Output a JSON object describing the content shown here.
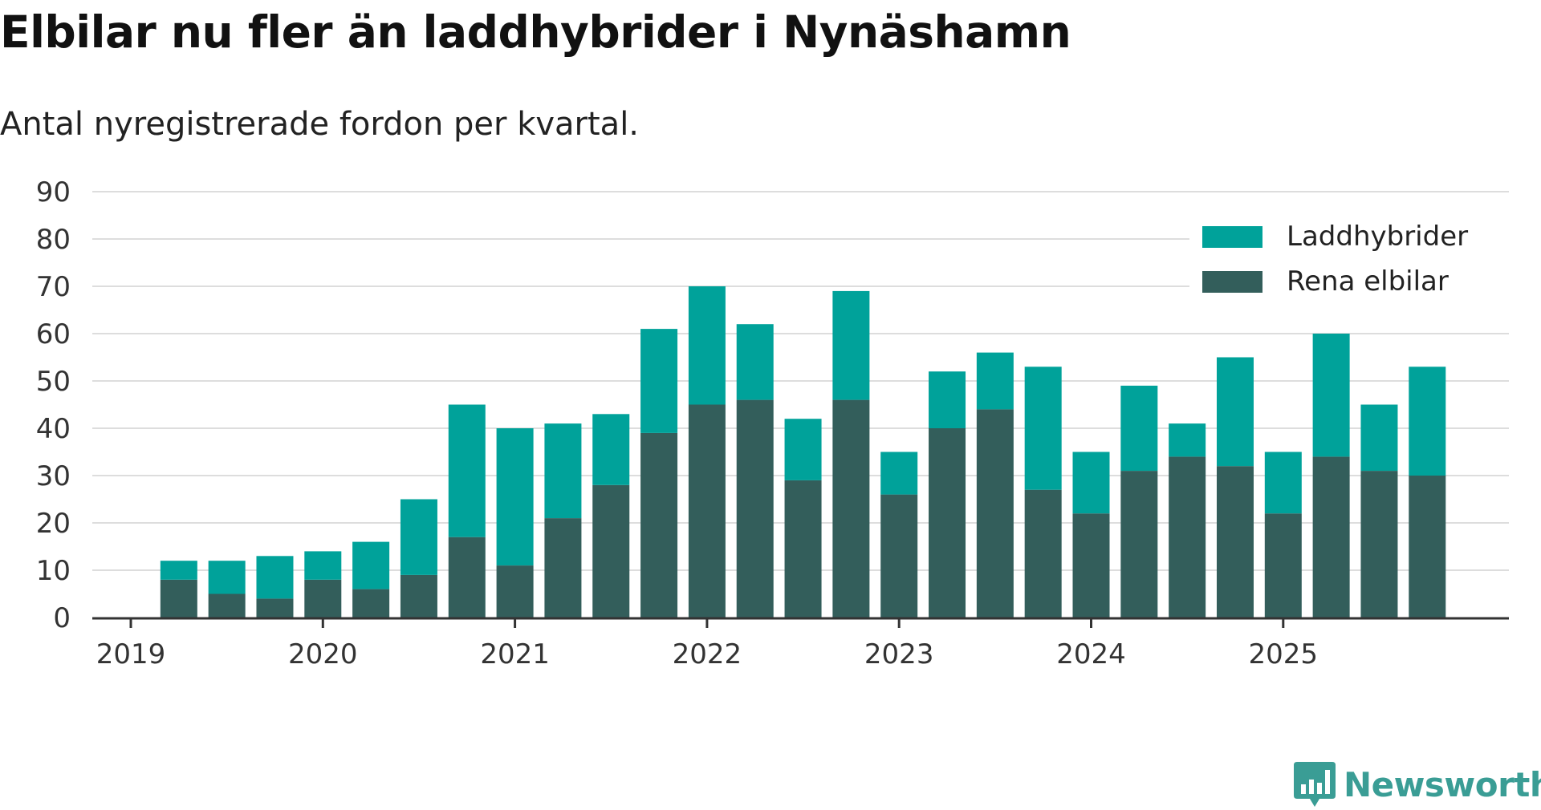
{
  "title": "Elbilar nu fler än laddhybrider i Nynäshamn",
  "subtitle": "Antal nyregistrerade fordon per kvartal.",
  "brand": "Newsworthy",
  "colors": {
    "laddhybrider": "#00a29a",
    "rena_elbilar": "#335e5b",
    "grid": "#dddddd",
    "axis": "#333333",
    "brand": "#3a9d95"
  },
  "chart_data": {
    "type": "bar",
    "stacked": true,
    "title": "Elbilar nu fler än laddhybrider i Nynäshamn",
    "subtitle": "Antal nyregistrerade fordon per kvartal.",
    "xlabel": "",
    "ylabel": "",
    "ylim": [
      0,
      90
    ],
    "yticks": [
      0,
      10,
      20,
      30,
      40,
      50,
      60,
      70,
      80,
      90
    ],
    "year_ticks": [
      "2019",
      "2020",
      "2021",
      "2022",
      "2023",
      "2024",
      "2025"
    ],
    "legend_position": "top-right",
    "grid": true,
    "categories": [
      "2019 Q1",
      "2019 Q2",
      "2019 Q3",
      "2019 Q4",
      "2020 Q1",
      "2020 Q2",
      "2020 Q3",
      "2020 Q4",
      "2021 Q1",
      "2021 Q2",
      "2021 Q3",
      "2021 Q4",
      "2022 Q1",
      "2022 Q2",
      "2022 Q3",
      "2022 Q4",
      "2023 Q1",
      "2023 Q2",
      "2023 Q3",
      "2023 Q4",
      "2024 Q1",
      "2024 Q2",
      "2024 Q3",
      "2024 Q4",
      "2025 Q1",
      "2025 Q2",
      "2025 Q3"
    ],
    "series": [
      {
        "name": "Rena elbilar",
        "values": [
          8,
          5,
          4,
          8,
          6,
          9,
          17,
          11,
          21,
          28,
          39,
          45,
          46,
          29,
          46,
          26,
          40,
          44,
          27,
          22,
          31,
          34,
          32,
          22,
          34,
          31,
          30
        ]
      },
      {
        "name": "Laddhybrider",
        "values": [
          4,
          7,
          9,
          6,
          10,
          16,
          28,
          29,
          20,
          15,
          22,
          25,
          16,
          13,
          23,
          9,
          12,
          12,
          26,
          13,
          18,
          7,
          23,
          13,
          26,
          14,
          23
        ]
      }
    ],
    "legend": [
      "Laddhybrider",
      "Rena elbilar"
    ]
  }
}
